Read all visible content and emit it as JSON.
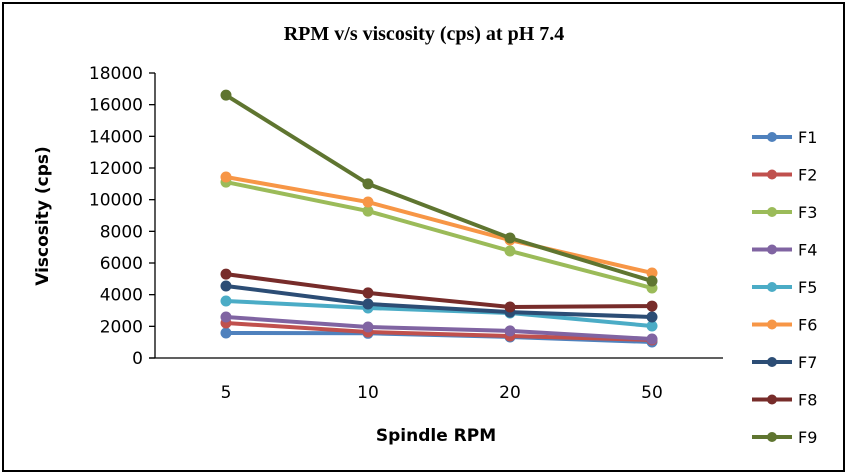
{
  "chart_data": {
    "type": "line",
    "title": "RPM v/s viscosity (cps) at pH 7.4",
    "xlabel": "Spindle RPM",
    "ylabel": "Viscosity (cps)",
    "categories": [
      "5",
      "10",
      "20",
      "50"
    ],
    "ylim": [
      0,
      18000
    ],
    "yticks": [
      0,
      2000,
      4000,
      6000,
      8000,
      10000,
      12000,
      14000,
      16000,
      18000
    ],
    "ytick_labels": [
      "0",
      "2000",
      "4000",
      "6000",
      "8000",
      "10000",
      "12000",
      "14000",
      "16000",
      "18000"
    ],
    "grid": false,
    "legend_position": "right",
    "series": [
      {
        "name": "F1",
        "color": "#4F81BD",
        "values": [
          1580,
          1560,
          1330,
          1010
        ]
      },
      {
        "name": "F2",
        "color": "#C0504D",
        "values": [
          2210,
          1640,
          1390,
          1140
        ]
      },
      {
        "name": "F3",
        "color": "#9BBB59",
        "values": [
          11110,
          9280,
          6760,
          4420
        ]
      },
      {
        "name": "F4",
        "color": "#8064A2",
        "values": [
          2590,
          1960,
          1710,
          1200
        ]
      },
      {
        "name": "F5",
        "color": "#4BACC6",
        "values": [
          3600,
          3160,
          2840,
          2020
        ]
      },
      {
        "name": "F6",
        "color": "#F79646",
        "values": [
          11430,
          9850,
          7450,
          5370
        ]
      },
      {
        "name": "F7",
        "color": "#2C4D75",
        "values": [
          4550,
          3410,
          2900,
          2590
        ]
      },
      {
        "name": "F8",
        "color": "#772C2A",
        "values": [
          5300,
          4110,
          3220,
          3280
        ]
      },
      {
        "name": "F9",
        "color": "#5F7530",
        "values": [
          16600,
          11000,
          7580,
          4860
        ]
      }
    ]
  }
}
